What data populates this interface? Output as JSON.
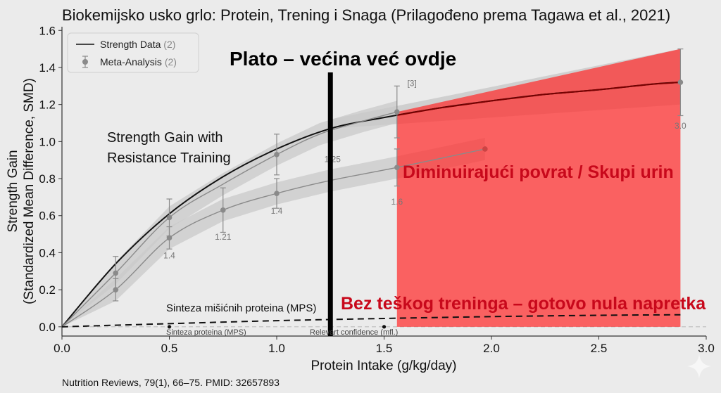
{
  "chart_data": {
    "type": "line",
    "title": "Biokemijsko usko grlo: Protein, Trening i Snaga (Prilagođeno prema Tagawa et al., 2021)",
    "xlabel": "Protein Intake (g/kg/day)",
    "ylabel_line1": "Strength Gain",
    "ylabel_line2": "(Standardized Mean Difference, SMD)",
    "xlim": [
      0,
      3.0
    ],
    "ylim": [
      -0.05,
      1.62
    ],
    "x_ticks": [
      "0.0",
      "0.5",
      "1.0",
      "1.5",
      "2.0",
      "2.5",
      "3.0"
    ],
    "y_ticks": [
      "0.0",
      "0.2",
      "0.4",
      "0.6",
      "0.8",
      "1.0",
      "1.2",
      "1.4",
      "1.6"
    ],
    "grid": false,
    "legend_position": "top-left",
    "legend": [
      {
        "label": "Strength Data",
        "count": "(2)"
      },
      {
        "label": "Meta-Analysis",
        "count": "(2)"
      }
    ],
    "series": [
      {
        "name": "Strength Data",
        "color": "#111111",
        "x": [
          0.0,
          0.25,
          0.5,
          0.75,
          1.0,
          1.25,
          1.5,
          1.75,
          2.0,
          2.25,
          2.5,
          2.75,
          2.88
        ],
        "y": [
          0.0,
          0.34,
          0.61,
          0.81,
          0.96,
          1.07,
          1.13,
          1.18,
          1.22,
          1.255,
          1.28,
          1.31,
          1.32
        ]
      },
      {
        "name": "Meta-Analysis",
        "color": "#8a8a8a",
        "x": [
          0.0,
          0.25,
          0.5,
          0.75,
          1.0,
          1.2,
          1.4,
          1.56
        ],
        "y": [
          0.0,
          0.29,
          0.59,
          0.77,
          0.93,
          1.04,
          1.11,
          1.16
        ],
        "err": [
          0,
          0.09,
          0.1,
          0.1,
          0.11,
          0,
          0,
          0.14
        ],
        "markers": [
          false,
          true,
          true,
          false,
          true,
          false,
          false,
          true
        ],
        "band": 0.06
      },
      {
        "name": "",
        "color": "#8a8a8a",
        "x": [
          0.0,
          0.25,
          0.5,
          0.75,
          1.0,
          1.25,
          1.56,
          1.97
        ],
        "y": [
          0.0,
          0.2,
          0.48,
          0.63,
          0.72,
          0.79,
          0.86,
          0.96
        ],
        "err": [
          0,
          0.06,
          0.06,
          0.12,
          0.08,
          0,
          0.1,
          0
        ],
        "markers": [
          false,
          true,
          true,
          true,
          true,
          false,
          true,
          true
        ],
        "band": 0.06
      },
      {
        "name": "",
        "color": "#111111",
        "dashed": true,
        "x": [
          0.0,
          0.5,
          1.0,
          1.5,
          2.0,
          2.5,
          2.88
        ],
        "y": [
          0.0,
          0.017,
          0.033,
          0.045,
          0.055,
          0.062,
          0.065
        ]
      }
    ],
    "upper_band": {
      "x_start": 1.25,
      "x_end": 2.88,
      "y_low_start": 1.07,
      "y_high_start": 1.12,
      "y_low_end": 1.2,
      "y_high_end": 1.5
    },
    "extra_points": [
      {
        "x": 2.88,
        "y": 1.32,
        "err": 0.18
      }
    ],
    "point_labels": [
      {
        "text": "1.4",
        "x": 0.5,
        "y": 0.37
      },
      {
        "text": "1.21",
        "x": 0.75,
        "y": 0.47
      },
      {
        "text": "1.4",
        "x": 1.0,
        "y": 0.61
      },
      {
        "text": "1.25",
        "x": 1.26,
        "y": 0.89
      },
      {
        "text": "1.6",
        "x": 1.56,
        "y": 0.66
      },
      {
        "text": "[3]",
        "x": 1.63,
        "y": 1.3
      },
      {
        "text": "3.0",
        "x": 2.88,
        "y": 1.07
      }
    ],
    "red_region": {
      "x_start": 1.56,
      "x_end": 2.88,
      "y_bottom": 0.0,
      "y_top_start": 1.16,
      "y_top_end": 1.5
    },
    "vertical_line_x": 1.25,
    "baseline_y": 0.0
  },
  "annotations": {
    "plateau": "Plato – većina već ovdje",
    "diminishing": "Diminuirajući povrat / Skupi urin",
    "no_training": "Bez teškog treninga – gotovo nula napretka",
    "strength_line1": "Strength Gain with",
    "strength_line2": "Resistance Training",
    "mps": "Sinteza mišićnih proteina (MPS)",
    "mps_small": "Sinteza  proteina (MPS)",
    "relevant": "Relevart confidence (mfl.)"
  },
  "source": "Nutrition Reviews, 79(1), 66–75. PMID: 32657893",
  "watermark": "sparkle-icon"
}
